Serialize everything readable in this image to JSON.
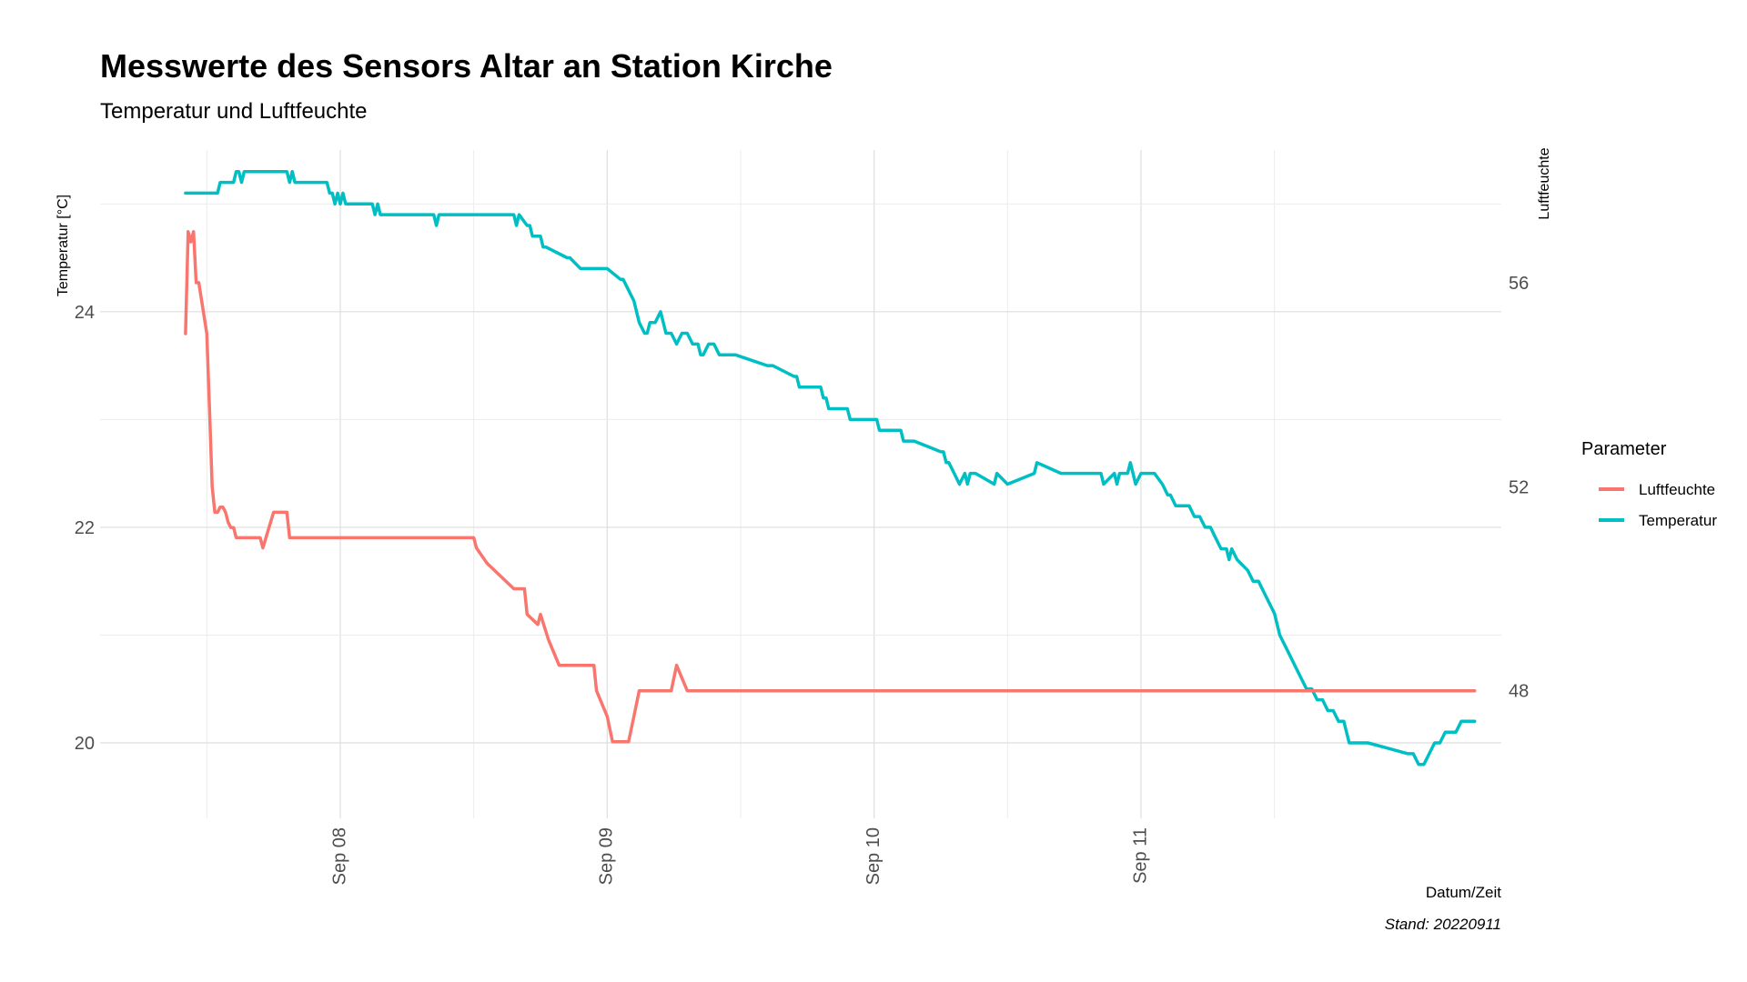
{
  "chart_data": {
    "type": "line",
    "title": "Messwerte des Sensors Altar an Station Kirche",
    "subtitle": "Temperatur und Luftfeuchte",
    "xlabel": "Datum/Zeit",
    "ylabel": "Temperatur [°C]",
    "y2label": "Luftfeuchte",
    "caption": "Stand: 20220911",
    "xlim": [
      6.6,
      11.85
    ],
    "ylim": [
      19.3,
      25.5
    ],
    "y2lim": [
      45.5,
      58.6
    ],
    "x_ticks": [
      {
        "value": 7.5,
        "label": "Sep 08"
      },
      {
        "value": 8.5,
        "label": "Sep 09"
      },
      {
        "value": 9.5,
        "label": "Sep 10"
      },
      {
        "value": 10.5,
        "label": "Sep 11"
      }
    ],
    "x_minor_ticks": [
      7.0,
      8.0,
      9.0,
      10.0,
      11.0
    ],
    "y_ticks": [
      {
        "value": 20,
        "label": "20"
      },
      {
        "value": 22,
        "label": "22"
      },
      {
        "value": 24,
        "label": "24"
      }
    ],
    "y_minor_ticks": [
      21,
      23,
      25
    ],
    "y2_ticks": [
      {
        "value": 48,
        "label": "48"
      },
      {
        "value": 52,
        "label": "52"
      },
      {
        "value": 56,
        "label": "56"
      }
    ],
    "grid": true,
    "legend": {
      "title": "Parameter",
      "position": "right",
      "entries": [
        {
          "name": "Luftfeuchte",
          "color": "#F8766D"
        },
        {
          "name": "Temperatur",
          "color": "#00BFC4"
        }
      ]
    },
    "series": [
      {
        "name": "Temperatur",
        "axis": "left",
        "color": "#00BFC4",
        "x": [
          6.92,
          7.04,
          7.05,
          7.1,
          7.11,
          7.12,
          7.13,
          7.14,
          7.2,
          7.3,
          7.31,
          7.32,
          7.33,
          7.45,
          7.46,
          7.47,
          7.48,
          7.49,
          7.5,
          7.51,
          7.52,
          7.62,
          7.63,
          7.64,
          7.65,
          7.85,
          7.86,
          7.87,
          8.15,
          8.16,
          8.17,
          8.2,
          8.21,
          8.22,
          8.25,
          8.26,
          8.27,
          8.35,
          8.36,
          8.4,
          8.41,
          8.5,
          8.55,
          8.56,
          8.6,
          8.61,
          8.62,
          8.64,
          8.65,
          8.66,
          8.68,
          8.7,
          8.72,
          8.74,
          8.76,
          8.78,
          8.8,
          8.82,
          8.84,
          8.85,
          8.86,
          8.88,
          8.9,
          8.92,
          8.95,
          8.98,
          9.1,
          9.12,
          9.2,
          9.21,
          9.22,
          9.3,
          9.31,
          9.32,
          9.33,
          9.34,
          9.4,
          9.41,
          9.5,
          9.51,
          9.52,
          9.6,
          9.61,
          9.62,
          9.65,
          9.75,
          9.76,
          9.77,
          9.78,
          9.8,
          9.82,
          9.84,
          9.85,
          9.86,
          9.88,
          9.95,
          9.96,
          10.0,
          10.1,
          10.11,
          10.2,
          10.25,
          10.35,
          10.36,
          10.4,
          10.41,
          10.42,
          10.45,
          10.46,
          10.47,
          10.48,
          10.5,
          10.55,
          10.58,
          10.6,
          10.61,
          10.63,
          10.66,
          10.68,
          10.7,
          10.72,
          10.74,
          10.76,
          10.78,
          10.8,
          10.82,
          10.83,
          10.84,
          10.86,
          10.9,
          10.92,
          10.94,
          10.96,
          11.0,
          11.02,
          11.04,
          11.06,
          11.08,
          11.1,
          11.12,
          11.14,
          11.16,
          11.18,
          11.2,
          11.22,
          11.24,
          11.26,
          11.28,
          11.3,
          11.35,
          11.5,
          11.52,
          11.54,
          11.56,
          11.58,
          11.6,
          11.62,
          11.64,
          11.66,
          11.68,
          11.7,
          11.75
        ],
        "values": [
          25.1,
          25.1,
          25.2,
          25.2,
          25.3,
          25.3,
          25.2,
          25.3,
          25.3,
          25.3,
          25.2,
          25.3,
          25.2,
          25.2,
          25.1,
          25.1,
          25.0,
          25.1,
          25.0,
          25.1,
          25.0,
          25.0,
          24.9,
          25.0,
          24.9,
          24.9,
          24.8,
          24.9,
          24.9,
          24.8,
          24.9,
          24.8,
          24.8,
          24.7,
          24.7,
          24.6,
          24.6,
          24.5,
          24.5,
          24.4,
          24.4,
          24.4,
          24.3,
          24.3,
          24.1,
          24.0,
          23.9,
          23.8,
          23.8,
          23.9,
          23.9,
          24.0,
          23.8,
          23.8,
          23.7,
          23.8,
          23.8,
          23.7,
          23.7,
          23.6,
          23.6,
          23.7,
          23.7,
          23.6,
          23.6,
          23.6,
          23.5,
          23.5,
          23.4,
          23.4,
          23.3,
          23.3,
          23.2,
          23.2,
          23.1,
          23.1,
          23.1,
          23.0,
          23.0,
          23.0,
          22.9,
          22.9,
          22.8,
          22.8,
          22.8,
          22.7,
          22.7,
          22.6,
          22.6,
          22.5,
          22.4,
          22.5,
          22.4,
          22.5,
          22.5,
          22.4,
          22.5,
          22.4,
          22.5,
          22.6,
          22.5,
          22.5,
          22.5,
          22.4,
          22.5,
          22.4,
          22.5,
          22.5,
          22.6,
          22.5,
          22.4,
          22.5,
          22.5,
          22.4,
          22.3,
          22.3,
          22.2,
          22.2,
          22.2,
          22.1,
          22.1,
          22.0,
          22.0,
          21.9,
          21.8,
          21.8,
          21.7,
          21.8,
          21.7,
          21.6,
          21.5,
          21.5,
          21.4,
          21.2,
          21.0,
          20.9,
          20.8,
          20.7,
          20.6,
          20.5,
          20.5,
          20.4,
          20.4,
          20.3,
          20.3,
          20.2,
          20.2,
          20.0,
          20.0,
          20.0,
          19.9,
          19.9,
          19.8,
          19.8,
          19.9,
          20.0,
          20.0,
          20.1,
          20.1,
          20.1,
          20.2,
          20.2
        ]
      },
      {
        "name": "Luftfeuchte",
        "axis": "right",
        "color": "#F8766D",
        "x": [
          6.92,
          6.93,
          6.94,
          6.95,
          6.96,
          6.97,
          7.0,
          7.01,
          7.02,
          7.03,
          7.04,
          7.05,
          7.06,
          7.07,
          7.08,
          7.09,
          7.1,
          7.11,
          7.12,
          7.2,
          7.21,
          7.25,
          7.26,
          7.3,
          7.31,
          7.32,
          7.38,
          7.39,
          7.4,
          7.42,
          7.44,
          7.45,
          7.46,
          7.47,
          7.48,
          7.5,
          7.52,
          7.54,
          7.56,
          7.6,
          8.0,
          8.01,
          8.05,
          8.15,
          8.16,
          8.19,
          8.2,
          8.24,
          8.25,
          8.28,
          8.32,
          8.45,
          8.46,
          8.5,
          8.52,
          8.55,
          8.56,
          8.58,
          8.6,
          8.62,
          8.64,
          8.65,
          8.68,
          8.7,
          8.72,
          8.74,
          8.76,
          8.8,
          8.82,
          8.84,
          8.86,
          8.88,
          8.9,
          8.92,
          8.94,
          9.02,
          9.03,
          9.04,
          9.05,
          9.06,
          9.07,
          9.08,
          9.09,
          9.1,
          9.11,
          9.12,
          9.14,
          9.16,
          9.18,
          9.2,
          9.3,
          9.34,
          9.4,
          9.5,
          9.6,
          9.7,
          9.8,
          9.9,
          10.0,
          10.05,
          10.06,
          10.08,
          10.1,
          10.12,
          10.14,
          10.2,
          10.25,
          10.3,
          10.35,
          10.4,
          10.45,
          10.5,
          10.6,
          10.7,
          10.8,
          10.86,
          10.9,
          10.92,
          10.94,
          10.98,
          11.0,
          11.02,
          11.04,
          11.06,
          11.08,
          11.1,
          11.12,
          11.14,
          11.16,
          11.2,
          11.25,
          11.3,
          11.35,
          11.4,
          11.45,
          11.5,
          11.55,
          11.6,
          11.65,
          11.7,
          11.75
        ],
        "values": [
          55.0,
          57.0,
          56.8,
          57.0,
          56.0,
          56.0,
          55.0,
          53.5,
          52.0,
          51.5,
          51.5,
          51.6,
          51.6,
          51.5,
          51.3,
          51.2,
          51.2,
          51.0,
          51.0,
          51.0,
          50.8,
          51.5,
          51.5,
          51.5,
          51.0,
          51.0,
          51.0,
          51.0,
          51.0,
          51.0,
          51.0,
          51.0,
          51.0,
          51.0,
          51.0,
          51.0,
          51.0,
          51.0,
          51.0,
          51.0,
          51.0,
          50.8,
          50.5,
          50.0,
          50.0,
          50.0,
          49.5,
          49.3,
          49.5,
          49.0,
          48.5,
          48.5,
          48.0,
          47.5,
          47.0,
          47.0,
          47.0,
          47.0,
          47.5,
          48.0,
          48.0,
          48.0,
          48.0,
          48.0,
          48.0,
          48.0,
          48.5,
          48.0,
          48.0,
          48.0,
          48.0,
          48.0,
          48.0,
          48.0,
          48.0,
          48.0,
          48.0,
          48.0,
          48.0,
          48.0,
          48.0,
          48.0,
          48.0,
          48.0,
          48.0,
          48.0,
          48.0,
          48.0,
          48.0,
          48.0,
          48.0,
          48.0,
          48.0,
          48.0,
          48.0,
          48.0,
          48.0,
          48.0,
          48.0,
          48.0,
          48.0,
          48.0,
          48.0,
          48.0,
          48.0,
          48.0,
          48.0,
          48.0,
          48.0,
          48.0,
          48.0,
          48.0,
          48.0,
          48.0,
          48.0,
          48.0,
          48.0,
          48.0,
          48.0,
          48.0,
          48.0,
          48.0,
          48.0,
          48.0,
          48.0,
          48.0,
          48.0,
          48.0,
          48.0,
          48.0,
          48.0,
          48.0,
          48.0,
          48.0,
          48.0,
          48.0,
          48.0,
          48.0,
          48.0,
          48.0,
          48.0
        ]
      }
    ]
  }
}
